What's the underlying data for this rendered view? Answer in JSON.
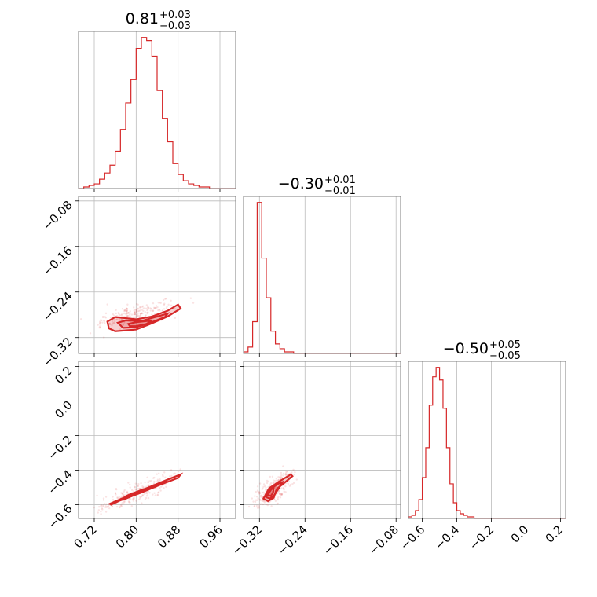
{
  "chart_data": {
    "type": "corner",
    "color": "#d62728",
    "parameters": [
      {
        "median": "0.81",
        "plus": "+0.03",
        "minus": "−0.03",
        "range": [
          0.69,
          0.99
        ],
        "ticks": [
          0.72,
          0.8,
          0.88,
          0.96
        ],
        "tick_labels": [
          "0.72",
          "0.80",
          "0.88",
          "0.96"
        ]
      },
      {
        "median": "−0.30",
        "plus": "+0.01",
        "minus": "−0.01",
        "range": [
          -0.348,
          -0.072
        ],
        "ticks": [
          -0.32,
          -0.24,
          -0.16,
          -0.08
        ],
        "tick_labels": [
          "−0.32",
          "−0.24",
          "−0.16",
          "−0.08"
        ]
      },
      {
        "median": "−0.50",
        "plus": "+0.05",
        "minus": "−0.05",
        "range": [
          -0.68,
          0.23
        ],
        "ticks": [
          -0.6,
          -0.4,
          -0.2,
          0.0,
          0.2
        ],
        "tick_labels": [
          "−0.6",
          "−0.4",
          "−0.2",
          "0.0",
          "0.2"
        ]
      }
    ],
    "histograms": [
      {
        "bins": [
          0.69,
          0.7,
          0.71,
          0.72,
          0.73,
          0.74,
          0.75,
          0.76,
          0.77,
          0.78,
          0.79,
          0.8,
          0.81,
          0.82,
          0.83,
          0.84,
          0.85,
          0.86,
          0.87,
          0.88,
          0.89,
          0.9,
          0.91,
          0.92,
          0.93,
          0.94,
          0.95,
          0.96,
          0.97,
          0.98,
          0.99
        ],
        "counts": [
          0,
          1,
          2,
          3,
          6,
          10,
          15,
          24,
          38,
          55,
          70,
          90,
          97,
          95,
          85,
          63,
          45,
          30,
          16,
          9,
          5,
          3,
          2,
          1,
          1,
          0,
          0,
          0,
          0,
          0
        ]
      },
      {
        "bins": [
          -0.348,
          -0.34,
          -0.332,
          -0.324,
          -0.316,
          -0.308,
          -0.3,
          -0.292,
          -0.284,
          -0.276,
          -0.268,
          -0.26,
          -0.252,
          -0.244,
          -0.236,
          -0.228,
          -0.22,
          -0.212,
          -0.204,
          -0.196,
          -0.188,
          -0.18,
          -0.172,
          -0.164,
          -0.156,
          -0.148,
          -0.14,
          -0.132,
          -0.124,
          -0.116,
          -0.108,
          -0.1,
          -0.092,
          -0.084,
          -0.076,
          -0.072
        ],
        "counts": [
          1,
          4,
          20,
          95,
          60,
          35,
          14,
          6,
          3,
          1,
          1,
          0,
          0,
          0,
          0,
          0,
          0,
          0,
          0,
          0,
          0,
          0,
          0,
          0,
          0,
          0,
          0,
          0,
          0,
          0,
          0,
          0,
          0,
          0,
          0
        ]
      },
      {
        "bins": [
          -0.68,
          -0.66,
          -0.64,
          -0.62,
          -0.6,
          -0.58,
          -0.56,
          -0.54,
          -0.52,
          -0.5,
          -0.48,
          -0.46,
          -0.44,
          -0.42,
          -0.4,
          -0.38,
          -0.36,
          -0.34,
          -0.32,
          -0.3,
          -0.28,
          -0.26,
          -0.24,
          -0.22,
          -0.2,
          -0.18,
          -0.16,
          -0.14,
          -0.12,
          -0.1,
          -0.08,
          -0.06,
          -0.04,
          -0.02,
          0.0,
          0.02,
          0.04,
          0.06,
          0.08,
          0.1,
          0.12,
          0.14,
          0.16,
          0.18,
          0.2,
          0.23
        ],
        "counts": [
          1,
          2,
          5,
          12,
          26,
          45,
          72,
          90,
          96,
          88,
          70,
          45,
          22,
          10,
          5,
          3,
          2,
          1,
          1,
          0,
          0,
          0,
          0,
          0,
          0,
          0,
          0,
          0,
          0,
          0,
          0,
          0,
          0,
          0,
          0,
          0,
          0,
          0,
          0,
          0,
          0,
          0,
          0,
          0,
          0
        ]
      }
    ],
    "correlations": [
      {
        "x": 0,
        "y": 1,
        "center": [
          0.8,
          -0.29
        ],
        "contours": [
          [
            [
              0.745,
              -0.292
            ],
            [
              0.76,
              -0.284
            ],
            [
              0.8,
              -0.288
            ],
            [
              0.83,
              -0.283
            ],
            [
              0.86,
              -0.273
            ],
            [
              0.88,
              -0.262
            ],
            [
              0.885,
              -0.269
            ],
            [
              0.86,
              -0.283
            ],
            [
              0.83,
              -0.295
            ],
            [
              0.8,
              -0.306
            ],
            [
              0.76,
              -0.309
            ],
            [
              0.748,
              -0.304
            ]
          ],
          [
            [
              0.765,
              -0.294
            ],
            [
              0.78,
              -0.29
            ],
            [
              0.81,
              -0.291
            ],
            [
              0.84,
              -0.283
            ],
            [
              0.86,
              -0.278
            ],
            [
              0.855,
              -0.284
            ],
            [
              0.83,
              -0.293
            ],
            [
              0.8,
              -0.302
            ],
            [
              0.775,
              -0.303
            ]
          ],
          [
            [
              0.785,
              -0.296
            ],
            [
              0.8,
              -0.293
            ],
            [
              0.83,
              -0.29
            ],
            [
              0.82,
              -0.296
            ],
            [
              0.8,
              -0.3
            ],
            [
              0.788,
              -0.3
            ]
          ]
        ]
      },
      {
        "x": 0,
        "y": 2,
        "center": [
          0.81,
          -0.5
        ],
        "contours": [
          [
            [
              0.75,
              -0.595
            ],
            [
              0.78,
              -0.555
            ],
            [
              0.82,
              -0.505
            ],
            [
              0.86,
              -0.455
            ],
            [
              0.885,
              -0.425
            ],
            [
              0.88,
              -0.445
            ],
            [
              0.85,
              -0.48
            ],
            [
              0.81,
              -0.53
            ],
            [
              0.77,
              -0.575
            ],
            [
              0.752,
              -0.6
            ]
          ],
          [
            [
              0.77,
              -0.57
            ],
            [
              0.8,
              -0.535
            ],
            [
              0.84,
              -0.485
            ],
            [
              0.86,
              -0.465
            ],
            [
              0.84,
              -0.49
            ],
            [
              0.8,
              -0.54
            ],
            [
              0.775,
              -0.572
            ]
          ],
          [
            [
              0.785,
              -0.545
            ],
            [
              0.81,
              -0.515
            ],
            [
              0.83,
              -0.495
            ],
            [
              0.81,
              -0.522
            ],
            [
              0.79,
              -0.548
            ]
          ]
        ]
      },
      {
        "x": 1,
        "y": 2,
        "center": [
          -0.3,
          -0.5
        ],
        "contours": [
          [
            [
              -0.313,
              -0.565
            ],
            [
              -0.303,
              -0.505
            ],
            [
              -0.285,
              -0.465
            ],
            [
              -0.265,
              -0.425
            ],
            [
              -0.262,
              -0.435
            ],
            [
              -0.275,
              -0.47
            ],
            [
              -0.29,
              -0.51
            ],
            [
              -0.295,
              -0.56
            ],
            [
              -0.305,
              -0.58
            ]
          ],
          [
            [
              -0.309,
              -0.555
            ],
            [
              -0.3,
              -0.51
            ],
            [
              -0.288,
              -0.48
            ],
            [
              -0.28,
              -0.47
            ],
            [
              -0.285,
              -0.5
            ],
            [
              -0.294,
              -0.545
            ],
            [
              -0.302,
              -0.565
            ]
          ],
          [
            [
              -0.306,
              -0.545
            ],
            [
              -0.3,
              -0.515
            ],
            [
              -0.295,
              -0.5
            ],
            [
              -0.296,
              -0.53
            ],
            [
              -0.3,
              -0.55
            ]
          ]
        ]
      }
    ]
  }
}
